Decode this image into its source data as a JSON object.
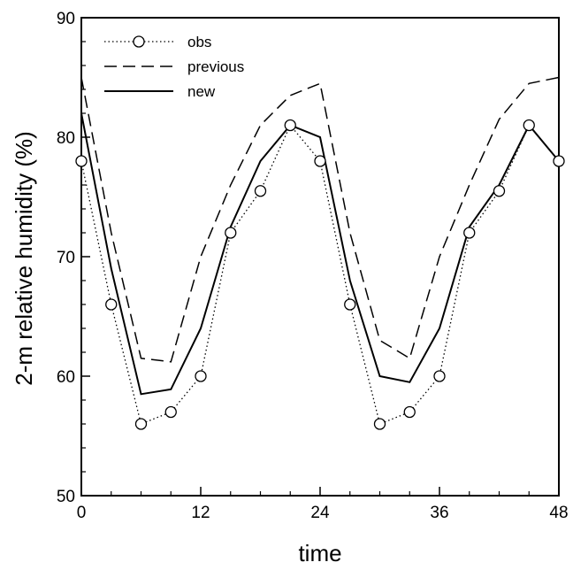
{
  "chart_data": {
    "type": "line",
    "title": "",
    "xlabel": "time",
    "ylabel": "2-m  relative humidity (%)",
    "xlim": [
      0,
      48
    ],
    "ylim": [
      50,
      90
    ],
    "xticks": [
      0,
      12,
      24,
      36,
      48
    ],
    "yticks": [
      50,
      60,
      70,
      80,
      90
    ],
    "x_minor_step": 3,
    "y_minor_step": 2,
    "grid": false,
    "legend_position": "top-left",
    "series": [
      {
        "name": "obs",
        "style": "dotted-circles",
        "color": "#000000",
        "x": [
          0,
          3,
          6,
          9,
          12,
          15,
          18,
          21,
          24,
          27,
          30,
          33,
          36,
          39,
          42,
          45,
          48
        ],
        "y": [
          78,
          66,
          56,
          57,
          60,
          72,
          75.5,
          81,
          78,
          66,
          56,
          57,
          60,
          72,
          75.5,
          81,
          78
        ]
      },
      {
        "name": "previous",
        "style": "dashed",
        "color": "#000000",
        "x": [
          0,
          3,
          6,
          9,
          12,
          15,
          18,
          21,
          24,
          27,
          30,
          33,
          36,
          39,
          42,
          45,
          48
        ],
        "y": [
          85,
          72,
          61.5,
          61.2,
          70,
          76,
          81,
          83.5,
          84.5,
          72,
          63,
          61.5,
          70,
          76,
          81.5,
          84.5,
          85
        ]
      },
      {
        "name": "new",
        "style": "solid",
        "color": "#000000",
        "x": [
          0,
          3,
          6,
          9,
          12,
          15,
          18,
          21,
          24,
          27,
          30,
          33,
          36,
          39,
          42,
          45,
          48
        ],
        "y": [
          82,
          69,
          58.5,
          58.9,
          64,
          72.5,
          78,
          81,
          80,
          68,
          60,
          59.5,
          64,
          72.5,
          76,
          81,
          78
        ]
      }
    ]
  }
}
